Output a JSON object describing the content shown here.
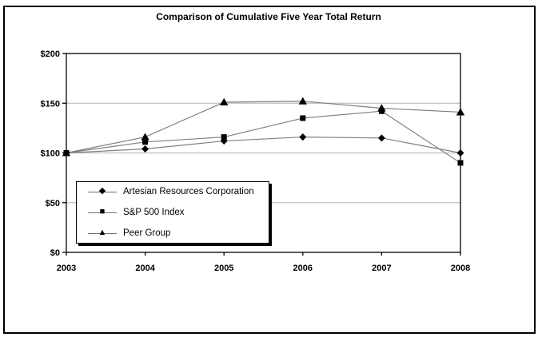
{
  "title": "Comparison of Cumulative Five Year Total Return",
  "chart_data": {
    "type": "line",
    "categories": [
      "2003",
      "2004",
      "2005",
      "2006",
      "2007",
      "2008"
    ],
    "series": [
      {
        "name": "Artesian Resources Corporation",
        "marker": "diamond",
        "marker_glyph": "◆",
        "values": [
          100,
          104,
          112,
          116,
          115,
          100
        ]
      },
      {
        "name": "S&P 500 Index",
        "marker": "square",
        "marker_glyph": "■",
        "values": [
          100,
          111,
          116,
          135,
          142,
          90
        ]
      },
      {
        "name": "Peer Group",
        "marker": "triangle",
        "marker_glyph": "▲",
        "values": [
          100,
          116,
          151,
          152,
          145,
          141
        ]
      }
    ],
    "xlabel": "",
    "ylabel": "",
    "ylim": [
      0,
      200
    ],
    "yticks": [
      {
        "value": 0,
        "label": "$0"
      },
      {
        "value": 50,
        "label": "$50"
      },
      {
        "value": 100,
        "label": "$100"
      },
      {
        "value": 150,
        "label": "$150"
      },
      {
        "value": 200,
        "label": "$200"
      }
    ],
    "grid": true,
    "legend_position": "inside-lower-left",
    "colors": {
      "line": "#808080",
      "marker": "#000000",
      "gridline": "#c0c0c0",
      "axis": "#000000",
      "background": "#ffffff"
    }
  }
}
